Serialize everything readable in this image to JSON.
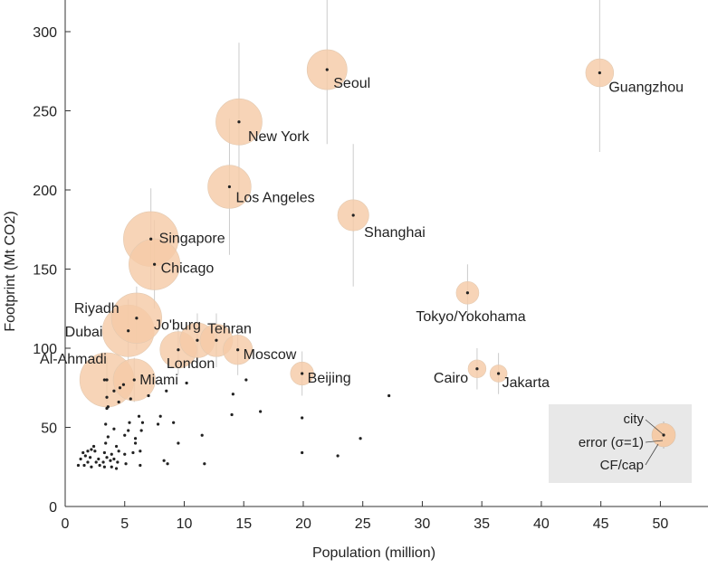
{
  "chart_data": {
    "type": "scatter",
    "xlabel": "Population (million)",
    "ylabel": "Footprint (Mt CO2)",
    "xlim": [
      0,
      54
    ],
    "ylim": [
      0,
      320
    ],
    "xticks": [
      0,
      5,
      10,
      15,
      20,
      25,
      30,
      35,
      40,
      45,
      50
    ],
    "yticks": [
      0,
      50,
      100,
      150,
      200,
      250,
      300
    ],
    "bubble_color": "#f5cba7",
    "point_color": "#222222",
    "error_bar_color": "#cccccc",
    "grid": false,
    "labeled_cities": [
      {
        "label": "Seoul",
        "x": 22.0,
        "y": 276,
        "err": 47,
        "cf_cap": 12.5
      },
      {
        "label": "Guangzhou",
        "x": 44.9,
        "y": 274,
        "err": 50,
        "cf_cap": 6.1
      },
      {
        "label": "New York",
        "x": 14.6,
        "y": 243,
        "err": 50,
        "cf_cap": 16.7
      },
      {
        "label": "Los Angeles",
        "x": 13.8,
        "y": 202,
        "err": 43,
        "cf_cap": 14.6
      },
      {
        "label": "Shanghai",
        "x": 24.2,
        "y": 184,
        "err": 45,
        "cf_cap": 7.6
      },
      {
        "label": "Singapore",
        "x": 7.2,
        "y": 169,
        "err": 32,
        "cf_cap": 23.5
      },
      {
        "label": "Chicago",
        "x": 7.5,
        "y": 153,
        "err": 28,
        "cf_cap": 20.4
      },
      {
        "label": "Tokyo/Yokohama",
        "x": 33.8,
        "y": 135,
        "err": 18,
        "cf_cap": 4.0
      },
      {
        "label": "Riyadh",
        "x": 6.0,
        "y": 119,
        "err": 20,
        "cf_cap": 19.8
      },
      {
        "label": "Dubai",
        "x": 5.3,
        "y": 111,
        "err": 20,
        "cf_cap": 20.9
      },
      {
        "label": "Jo'burg",
        "x": 11.1,
        "y": 105,
        "err": 17,
        "cf_cap": 9.5
      },
      {
        "label": "Tehran",
        "x": 12.7,
        "y": 105,
        "err": 17,
        "cf_cap": 8.3
      },
      {
        "label": "London",
        "x": 9.5,
        "y": 99,
        "err": 16,
        "cf_cap": 10.4
      },
      {
        "label": "Moscow",
        "x": 14.5,
        "y": 99,
        "err": 16,
        "cf_cap": 6.8
      },
      {
        "label": "Al-Ahmadi",
        "x": 3.5,
        "y": 80,
        "err": 14,
        "cf_cap": 22.9
      },
      {
        "label": "Miami",
        "x": 5.8,
        "y": 80,
        "err": 14,
        "cf_cap": 13.8
      },
      {
        "label": "Beijing",
        "x": 19.9,
        "y": 84,
        "err": 14,
        "cf_cap": 4.2
      },
      {
        "label": "Cairo",
        "x": 34.6,
        "y": 87,
        "err": 13,
        "cf_cap": 2.5
      },
      {
        "label": "Jakarta",
        "x": 36.4,
        "y": 84,
        "err": 13,
        "cf_cap": 2.3
      }
    ],
    "other_cities": [
      {
        "x": 3.3,
        "y": 80
      },
      {
        "x": 4.9,
        "y": 77
      },
      {
        "x": 4.6,
        "y": 75
      },
      {
        "x": 4.1,
        "y": 73
      },
      {
        "x": 3.5,
        "y": 69
      },
      {
        "x": 5.5,
        "y": 68
      },
      {
        "x": 7.0,
        "y": 70
      },
      {
        "x": 8.5,
        "y": 73
      },
      {
        "x": 10.2,
        "y": 78
      },
      {
        "x": 4.5,
        "y": 66
      },
      {
        "x": 3.6,
        "y": 63
      },
      {
        "x": 3.5,
        "y": 62
      },
      {
        "x": 14.1,
        "y": 71
      },
      {
        "x": 15.2,
        "y": 80
      },
      {
        "x": 27.2,
        "y": 70
      },
      {
        "x": 19.9,
        "y": 56
      },
      {
        "x": 16.4,
        "y": 60
      },
      {
        "x": 14.0,
        "y": 58
      },
      {
        "x": 8.0,
        "y": 57
      },
      {
        "x": 6.2,
        "y": 57
      },
      {
        "x": 5.4,
        "y": 53
      },
      {
        "x": 6.5,
        "y": 53
      },
      {
        "x": 7.8,
        "y": 52
      },
      {
        "x": 9.1,
        "y": 53
      },
      {
        "x": 3.4,
        "y": 52
      },
      {
        "x": 4.1,
        "y": 49
      },
      {
        "x": 5.3,
        "y": 48
      },
      {
        "x": 6.4,
        "y": 48
      },
      {
        "x": 11.5,
        "y": 45
      },
      {
        "x": 5.0,
        "y": 45
      },
      {
        "x": 3.6,
        "y": 44
      },
      {
        "x": 5.9,
        "y": 43
      },
      {
        "x": 24.8,
        "y": 43
      },
      {
        "x": 3.4,
        "y": 40
      },
      {
        "x": 4.3,
        "y": 38
      },
      {
        "x": 5.9,
        "y": 40
      },
      {
        "x": 9.5,
        "y": 40
      },
      {
        "x": 2.4,
        "y": 38
      },
      {
        "x": 2.2,
        "y": 36
      },
      {
        "x": 1.9,
        "y": 35
      },
      {
        "x": 2.5,
        "y": 35
      },
      {
        "x": 1.5,
        "y": 34
      },
      {
        "x": 3.3,
        "y": 34
      },
      {
        "x": 3.9,
        "y": 33
      },
      {
        "x": 4.5,
        "y": 35
      },
      {
        "x": 5.0,
        "y": 33
      },
      {
        "x": 5.7,
        "y": 34
      },
      {
        "x": 6.3,
        "y": 35
      },
      {
        "x": 1.7,
        "y": 32
      },
      {
        "x": 2.1,
        "y": 31
      },
      {
        "x": 2.8,
        "y": 30
      },
      {
        "x": 3.5,
        "y": 31
      },
      {
        "x": 4.1,
        "y": 30
      },
      {
        "x": 1.3,
        "y": 30
      },
      {
        "x": 1.9,
        "y": 28
      },
      {
        "x": 2.6,
        "y": 28
      },
      {
        "x": 3.2,
        "y": 28
      },
      {
        "x": 3.8,
        "y": 29
      },
      {
        "x": 4.4,
        "y": 28
      },
      {
        "x": 5.1,
        "y": 27
      },
      {
        "x": 1.1,
        "y": 26
      },
      {
        "x": 1.6,
        "y": 26
      },
      {
        "x": 2.2,
        "y": 25
      },
      {
        "x": 2.9,
        "y": 26
      },
      {
        "x": 3.3,
        "y": 25
      },
      {
        "x": 3.9,
        "y": 25
      },
      {
        "x": 4.3,
        "y": 24
      },
      {
        "x": 8.3,
        "y": 29
      },
      {
        "x": 8.6,
        "y": 27
      },
      {
        "x": 11.7,
        "y": 27
      },
      {
        "x": 6.3,
        "y": 26
      },
      {
        "x": 19.9,
        "y": 34
      },
      {
        "x": 22.9,
        "y": 32
      }
    ],
    "legend": {
      "labels": [
        "city",
        "error (σ=1)",
        "CF/cap"
      ],
      "position": "bottom-right"
    }
  }
}
